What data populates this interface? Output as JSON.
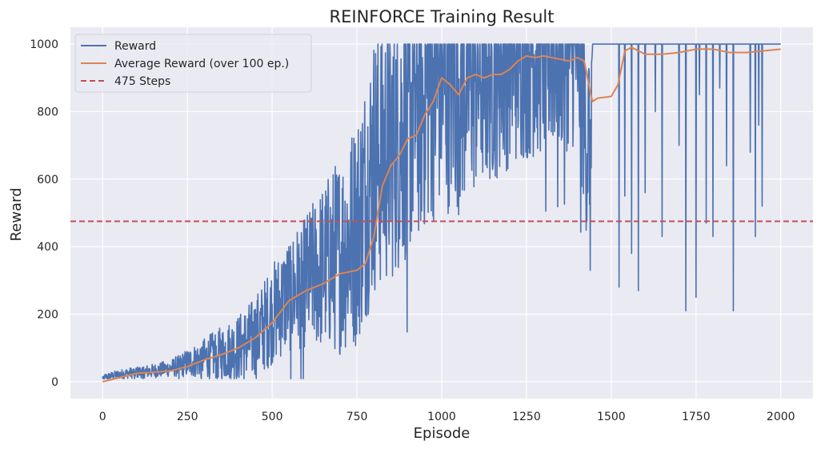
{
  "chart_data": {
    "type": "line",
    "title": "REINFORCE Training Result",
    "xlabel": "Episode",
    "ylabel": "Reward",
    "xlim": [
      -95,
      2095
    ],
    "ylim": [
      -50,
      1050
    ],
    "xticks": [
      0,
      250,
      500,
      750,
      1000,
      1250,
      1500,
      1750,
      2000
    ],
    "yticks": [
      0,
      200,
      400,
      600,
      800,
      1000
    ],
    "grid": true,
    "background": "#eaeaf2",
    "legend_position": "top-left",
    "series": [
      {
        "name": "Reward",
        "color": "#4c72b0",
        "style": "volatile",
        "trend_x": [
          0,
          50,
          100,
          150,
          200,
          250,
          300,
          350,
          400,
          450,
          500,
          550,
          600,
          650,
          700,
          750,
          800,
          850,
          900,
          950,
          1000,
          1050,
          1100,
          1150,
          1200,
          1250,
          1300,
          1350,
          1400,
          1430,
          1440,
          1445,
          2000
        ],
        "trend_y": [
          12,
          22,
          28,
          32,
          40,
          55,
          70,
          85,
          100,
          130,
          200,
          260,
          300,
          340,
          380,
          450,
          650,
          700,
          780,
          850,
          900,
          880,
          920,
          950,
          980,
          990,
          990,
          990,
          990,
          700,
          800,
          1000,
          1000
        ],
        "noise_amp_x": [
          0,
          200,
          300,
          400,
          500,
          600,
          700,
          750,
          800,
          900,
          1000,
          1200,
          1400,
          1440,
          1445,
          2000
        ],
        "noise_amp_y": [
          10,
          25,
          60,
          100,
          150,
          200,
          300,
          350,
          400,
          420,
          400,
          350,
          300,
          300,
          0,
          0
        ],
        "drops": [
          [
            1523,
            280
          ],
          [
            1540,
            550
          ],
          [
            1560,
            380
          ],
          [
            1580,
            270
          ],
          [
            1600,
            560
          ],
          [
            1630,
            800
          ],
          [
            1650,
            430
          ],
          [
            1700,
            700
          ],
          [
            1720,
            210
          ],
          [
            1750,
            250
          ],
          [
            1760,
            850
          ],
          [
            1780,
            470
          ],
          [
            1800,
            430
          ],
          [
            1820,
            870
          ],
          [
            1840,
            640
          ],
          [
            1860,
            210
          ],
          [
            1910,
            680
          ],
          [
            1925,
            430
          ],
          [
            1935,
            760
          ],
          [
            1945,
            520
          ]
        ]
      },
      {
        "name": "Average Reward (over 100 ep.)",
        "color": "#dd8452",
        "x": [
          0,
          50,
          100,
          150,
          200,
          250,
          300,
          350,
          400,
          450,
          500,
          550,
          600,
          650,
          700,
          750,
          775,
          800,
          825,
          850,
          875,
          900,
          925,
          950,
          975,
          1000,
          1025,
          1050,
          1075,
          1100,
          1125,
          1150,
          1175,
          1200,
          1225,
          1250,
          1275,
          1300,
          1325,
          1350,
          1375,
          1400,
          1420,
          1440,
          1445,
          1460,
          1500,
          1520,
          1540,
          1560,
          1600,
          1650,
          1700,
          1750,
          1800,
          1850,
          1900,
          1950,
          2000
        ],
        "y": [
          0,
          12,
          25,
          28,
          32,
          45,
          65,
          80,
          100,
          130,
          175,
          240,
          270,
          290,
          320,
          330,
          350,
          430,
          580,
          640,
          670,
          720,
          730,
          790,
          830,
          900,
          880,
          850,
          900,
          910,
          900,
          910,
          910,
          925,
          950,
          965,
          960,
          965,
          960,
          955,
          950,
          960,
          950,
          850,
          830,
          840,
          845,
          880,
          980,
          990,
          970,
          970,
          975,
          985,
          985,
          975,
          975,
          980,
          985
        ]
      },
      {
        "name": "475 Steps",
        "color": "#c44e52",
        "dashed": true,
        "y": 475
      }
    ]
  }
}
